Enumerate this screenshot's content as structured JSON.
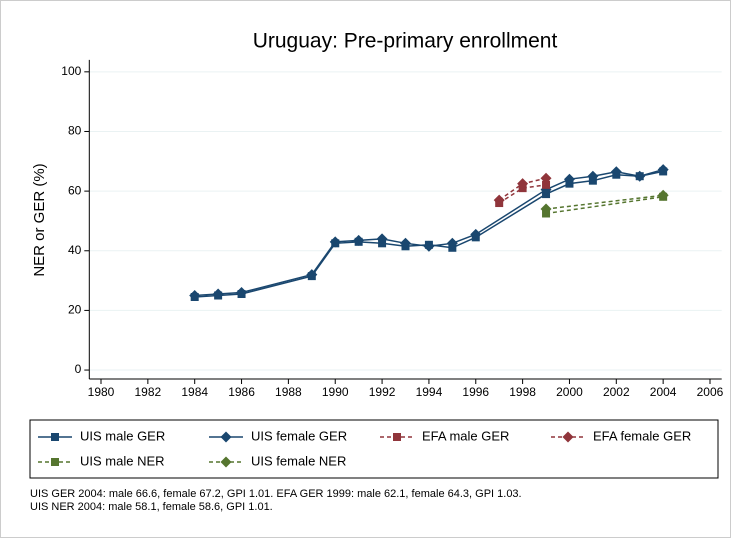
{
  "chart_data": {
    "type": "line",
    "title": "Uruguay: Pre-primary enrollment",
    "y_label": "NER or GER (%)",
    "xlim": [
      1979.5,
      2006.5
    ],
    "xticks": [
      1980,
      1982,
      1984,
      1986,
      1988,
      1990,
      1992,
      1994,
      1996,
      1998,
      2000,
      2002,
      2004,
      2006
    ],
    "ylim": [
      -3,
      104
    ],
    "yticks": [
      0,
      20,
      40,
      60,
      80,
      100
    ],
    "grid": true,
    "series": [
      {
        "name": "UIS male GER",
        "color": "#1a476f",
        "dash": false,
        "marker": "square",
        "x": [
          1984,
          1985,
          1986,
          1989,
          1990,
          1991,
          1992,
          1993,
          1994,
          1995,
          1996,
          1999,
          2000,
          2001,
          2002,
          2003,
          2004
        ],
        "values": [
          24.5,
          25,
          25.5,
          31.5,
          42.5,
          43,
          42.5,
          41.5,
          42,
          41,
          44.5,
          59,
          62.5,
          63.5,
          65.5,
          65,
          66.6
        ]
      },
      {
        "name": "UIS female GER",
        "color": "#1a476f",
        "dash": false,
        "marker": "diamond",
        "x": [
          1984,
          1985,
          1986,
          1989,
          1990,
          1991,
          1992,
          1993,
          1994,
          1995,
          1996,
          1999,
          2000,
          2001,
          2002,
          2003,
          2004
        ],
        "values": [
          25,
          25.5,
          26,
          32,
          43,
          43.5,
          44,
          42.5,
          41.5,
          42.5,
          45.5,
          60.5,
          64,
          65,
          66.5,
          65,
          67.2
        ]
      },
      {
        "name": "EFA male GER",
        "color": "#90353b",
        "dash": true,
        "marker": "square",
        "x": [
          1997,
          1998,
          1999
        ],
        "values": [
          56,
          61,
          62.1
        ]
      },
      {
        "name": "EFA female GER",
        "color": "#90353b",
        "dash": true,
        "marker": "diamond",
        "x": [
          1997,
          1998,
          1999
        ],
        "values": [
          57,
          62.5,
          64.3
        ]
      },
      {
        "name": "UIS male NER",
        "color": "#55752f",
        "dash": true,
        "marker": "square",
        "x": [
          1999,
          2004
        ],
        "values": [
          52.5,
          58.1
        ]
      },
      {
        "name": "UIS female NER",
        "color": "#55752f",
        "dash": true,
        "marker": "diamond",
        "x": [
          1999,
          2004
        ],
        "values": [
          54,
          58.6
        ]
      }
    ],
    "notes": [
      "UIS GER 2004: male 66.6, female 67.2, GPI 1.01. EFA GER 1999: male 62.1, female 64.3, GPI 1.03.",
      "UIS NER 2004: male 58.1, female 58.6, GPI 1.01."
    ]
  }
}
